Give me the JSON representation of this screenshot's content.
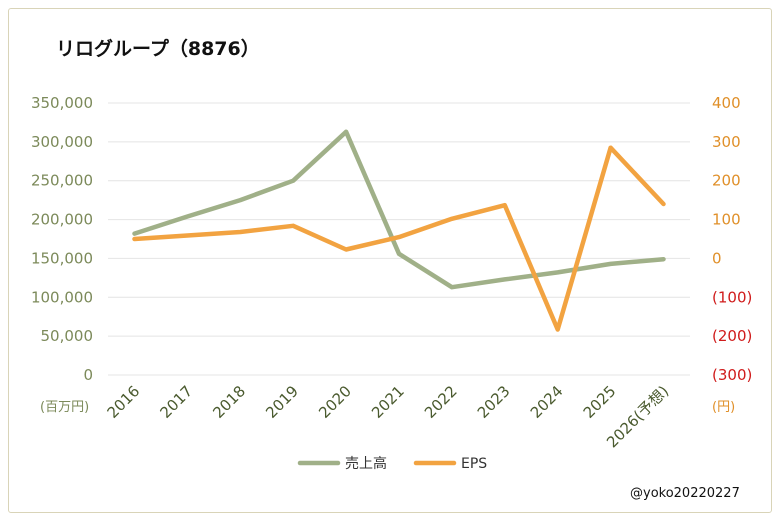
{
  "chart_data": {
    "type": "line",
    "title": "リログループ（8876）",
    "categories": [
      "2016",
      "2017",
      "2018",
      "2019",
      "2020",
      "2021",
      "2022",
      "2023",
      "2024",
      "2025",
      "2026(予想)"
    ],
    "series": [
      {
        "name": "売上高",
        "axis": "left",
        "color": "#a0b088",
        "values": [
          182000,
          204000,
          225000,
          250000,
          313000,
          156000,
          113000,
          123000,
          132000,
          143000,
          149000
        ]
      },
      {
        "name": "EPS",
        "axis": "right",
        "color": "#f2a341",
        "values": [
          50,
          59,
          68,
          84,
          23,
          55,
          102,
          137,
          -183,
          285,
          140
        ]
      }
    ],
    "y_left": {
      "unit": "(百万円)",
      "ylim": [
        0,
        350000
      ],
      "ticks": [
        0,
        50000,
        100000,
        150000,
        200000,
        250000,
        300000,
        350000
      ],
      "tick_labels": [
        "0",
        "50,000",
        "100,000",
        "150,000",
        "200,000",
        "250,000",
        "300,000",
        "350,000"
      ]
    },
    "y_right": {
      "unit": "(円)",
      "ylim": [
        -300,
        400
      ],
      "ticks": [
        -300,
        -200,
        -100,
        0,
        100,
        200,
        300,
        400
      ],
      "tick_labels": [
        "(300)",
        "(200)",
        "(100)",
        "0",
        "100",
        "200",
        "300",
        "400"
      ],
      "positive_color": "#e0902a",
      "negative_color": "#d01c1c"
    },
    "gridlines": true,
    "legend_position": "bottom",
    "credit": "@yoko20220227"
  }
}
